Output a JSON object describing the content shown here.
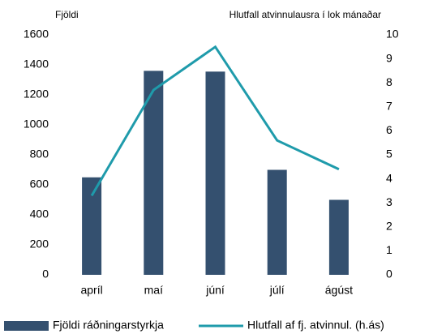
{
  "chart_data": {
    "type": "bar_line",
    "y_label": "Fjöldi",
    "y2_label": "Hlutfall atvinnulausra í lok mánaðar",
    "categories": [
      "apríl",
      "maí",
      "júní",
      "júlí",
      "ágúst"
    ],
    "series": [
      {
        "name": "Fjöldi ráðningarstyrkja",
        "type": "bar",
        "color": "#34506f",
        "values": [
          650,
          1360,
          1355,
          700,
          500
        ]
      },
      {
        "name": "Hlutfall af fj. atvinnul. (h.ás)",
        "type": "line",
        "axis": "y2",
        "color": "#1f9bab",
        "values": [
          3.3,
          7.7,
          9.5,
          5.6,
          4.4
        ]
      }
    ],
    "ylim": [
      0,
      1600
    ],
    "yticks": [
      0,
      200,
      400,
      600,
      800,
      1000,
      1200,
      1400,
      1600
    ],
    "y2lim": [
      0,
      10
    ],
    "y2ticks": [
      0,
      1,
      2,
      3,
      4,
      5,
      6,
      7,
      8,
      9,
      10
    ],
    "grid": false,
    "legend": "bottom"
  }
}
